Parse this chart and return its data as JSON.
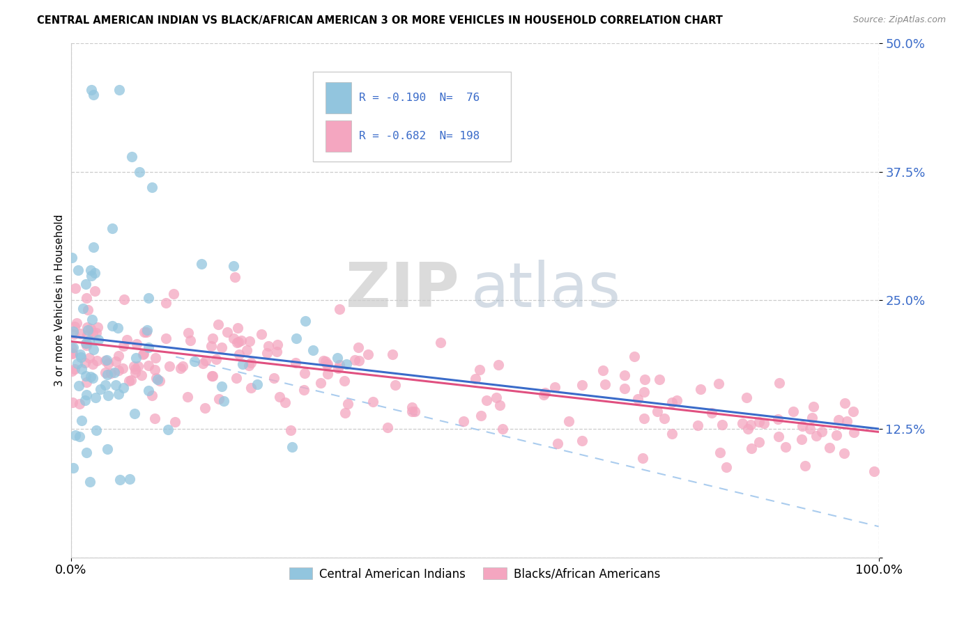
{
  "title": "CENTRAL AMERICAN INDIAN VS BLACK/AFRICAN AMERICAN 3 OR MORE VEHICLES IN HOUSEHOLD CORRELATION CHART",
  "source": "Source: ZipAtlas.com",
  "ylabel": "3 or more Vehicles in Household",
  "xlim": [
    0,
    1.0
  ],
  "ylim": [
    0,
    0.5
  ],
  "ytick_vals": [
    0.0,
    0.125,
    0.25,
    0.375,
    0.5
  ],
  "ytick_labels": [
    "",
    "12.5%",
    "25.0%",
    "37.5%",
    "50.0%"
  ],
  "xtick_vals": [
    0.0,
    1.0
  ],
  "xtick_labels": [
    "0.0%",
    "100.0%"
  ],
  "color_blue": "#92c5de",
  "color_pink": "#f4a6c0",
  "color_blue_line": "#3a6bc9",
  "color_pink_line": "#e05080",
  "color_dashed": "#aaccee",
  "watermark_zip": "ZIP",
  "watermark_atlas": "atlas",
  "legend_text_1": "R = -0.190  N=  76",
  "legend_text_2": "R = -0.682  N= 198",
  "legend_label_blue": "Central American Indians",
  "legend_label_pink": "Blacks/African Americans",
  "blue_line_x0": 0.0,
  "blue_line_x1": 1.0,
  "blue_line_y0": 0.215,
  "blue_line_y1": 0.125,
  "pink_line_x0": 0.0,
  "pink_line_x1": 1.0,
  "pink_line_y0": 0.21,
  "pink_line_y1": 0.122,
  "dash_line_x0": 0.13,
  "dash_line_x1": 1.0,
  "dash_line_y0": 0.195,
  "dash_line_y1": 0.03
}
